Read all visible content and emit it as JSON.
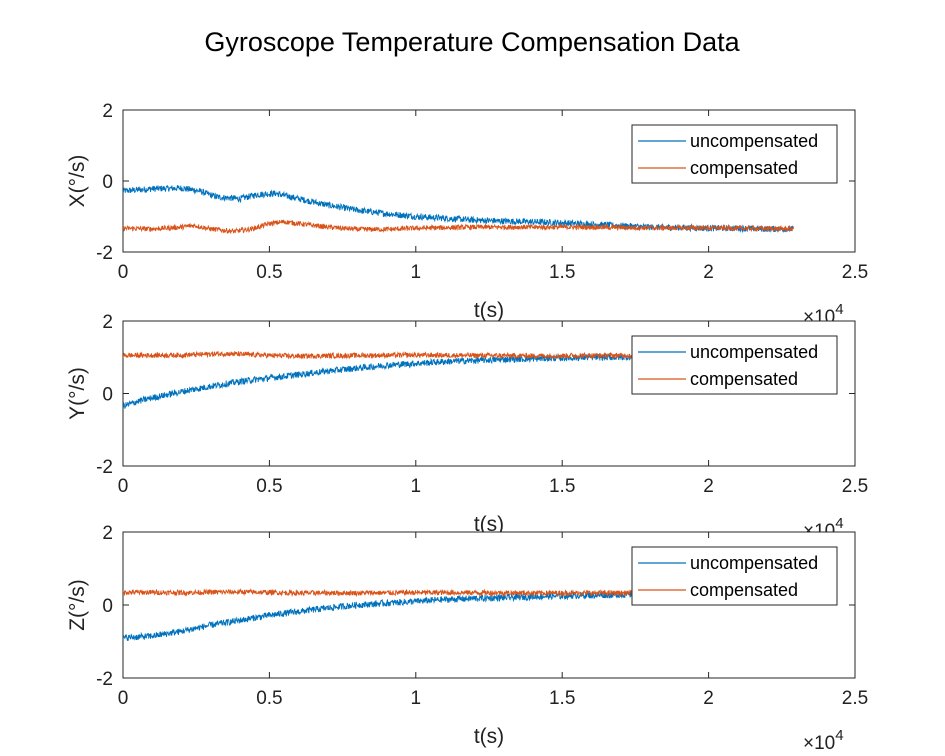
{
  "chart_data": {
    "title": "Gyroscope Temperature Compensation Data",
    "subplots": [
      {
        "type": "line",
        "ylabel": "X(°/s)",
        "xlabel": "t(s)",
        "xlim": [
          0,
          25000
        ],
        "ylim": [
          -2,
          2
        ],
        "x_ticks": [
          "0",
          "0.5",
          "1",
          "1.5",
          "2",
          "2.5"
        ],
        "y_ticks": [
          "-2",
          "0",
          "2"
        ],
        "x_exponent_base": "×10",
        "x_exponent_power": "4",
        "legend_position": "top-right",
        "series": [
          {
            "name": "uncompensated",
            "color": "#0072BD",
            "noise": 0.09,
            "points": [
              [
                0,
                -0.28
              ],
              [
                1000,
                -0.22
              ],
              [
                2000,
                -0.2
              ],
              [
                2600,
                -0.28
              ],
              [
                3200,
                -0.45
              ],
              [
                4000,
                -0.5
              ],
              [
                4600,
                -0.38
              ],
              [
                5200,
                -0.35
              ],
              [
                6000,
                -0.5
              ],
              [
                7000,
                -0.68
              ],
              [
                8000,
                -0.82
              ],
              [
                9000,
                -0.92
              ],
              [
                10000,
                -1.0
              ],
              [
                11000,
                -1.05
              ],
              [
                12000,
                -1.1
              ],
              [
                13000,
                -1.13
              ],
              [
                14000,
                -1.15
              ],
              [
                15000,
                -1.18
              ],
              [
                16000,
                -1.22
              ],
              [
                17000,
                -1.26
              ],
              [
                18000,
                -1.3
              ],
              [
                19000,
                -1.31
              ],
              [
                20000,
                -1.33
              ],
              [
                21000,
                -1.33
              ],
              [
                22000,
                -1.35
              ],
              [
                22900,
                -1.35
              ]
            ]
          },
          {
            "name": "compensated",
            "color": "#D95319",
            "noise": 0.07,
            "points": [
              [
                0,
                -1.33
              ],
              [
                1000,
                -1.35
              ],
              [
                2000,
                -1.3
              ],
              [
                2400,
                -1.25
              ],
              [
                3000,
                -1.35
              ],
              [
                3800,
                -1.42
              ],
              [
                4400,
                -1.35
              ],
              [
                5000,
                -1.2
              ],
              [
                5500,
                -1.15
              ],
              [
                6000,
                -1.2
              ],
              [
                7000,
                -1.3
              ],
              [
                8000,
                -1.36
              ],
              [
                9000,
                -1.36
              ],
              [
                10000,
                -1.33
              ],
              [
                12000,
                -1.3
              ],
              [
                14000,
                -1.3
              ],
              [
                16000,
                -1.3
              ],
              [
                18000,
                -1.32
              ],
              [
                20000,
                -1.32
              ],
              [
                22900,
                -1.35
              ]
            ]
          }
        ]
      },
      {
        "type": "line",
        "ylabel": "Y(°/s)",
        "xlabel": "t(s)",
        "xlim": [
          0,
          25000
        ],
        "ylim": [
          -2,
          2
        ],
        "x_ticks": [
          "0",
          "0.5",
          "1",
          "1.5",
          "2",
          "2.5"
        ],
        "y_ticks": [
          "-2",
          "0",
          "2"
        ],
        "x_exponent_base": "×10",
        "x_exponent_power": "4",
        "legend_position": "top-right",
        "series": [
          {
            "name": "uncompensated",
            "color": "#0072BD",
            "noise": 0.09,
            "points": [
              [
                0,
                -0.35
              ],
              [
                500,
                -0.22
              ],
              [
                1000,
                -0.12
              ],
              [
                2000,
                0.05
              ],
              [
                3000,
                0.2
              ],
              [
                4000,
                0.33
              ],
              [
                5000,
                0.43
              ],
              [
                6000,
                0.52
              ],
              [
                7000,
                0.62
              ],
              [
                8000,
                0.7
              ],
              [
                9000,
                0.78
              ],
              [
                10000,
                0.83
              ],
              [
                11000,
                0.88
              ],
              [
                12000,
                0.91
              ],
              [
                13000,
                0.94
              ],
              [
                14000,
                0.96
              ],
              [
                15000,
                0.98
              ],
              [
                16000,
                1.0
              ],
              [
                17000,
                1.0
              ],
              [
                18000,
                1.02
              ],
              [
                19000,
                1.03
              ],
              [
                20000,
                1.03
              ],
              [
                21000,
                1.04
              ],
              [
                22000,
                1.04
              ],
              [
                22900,
                1.05
              ]
            ]
          },
          {
            "name": "compensated",
            "color": "#D95319",
            "noise": 0.07,
            "points": [
              [
                0,
                1.05
              ],
              [
                2000,
                1.06
              ],
              [
                3500,
                1.1
              ],
              [
                5000,
                1.05
              ],
              [
                6000,
                1.03
              ],
              [
                8000,
                1.05
              ],
              [
                10000,
                1.06
              ],
              [
                12000,
                1.05
              ],
              [
                14000,
                1.04
              ],
              [
                16000,
                1.05
              ],
              [
                18000,
                1.05
              ],
              [
                20000,
                1.05
              ],
              [
                22900,
                1.05
              ]
            ]
          }
        ]
      },
      {
        "type": "line",
        "ylabel": "Z(°/s)",
        "xlabel": "t(s)",
        "xlim": [
          0,
          25000
        ],
        "ylim": [
          -2,
          2
        ],
        "x_ticks": [
          "0",
          "0.5",
          "1",
          "1.5",
          "2",
          "2.5"
        ],
        "y_ticks": [
          "-2",
          "0",
          "2"
        ],
        "x_exponent_base": "×10",
        "x_exponent_power": "4",
        "legend_position": "top-right",
        "series": [
          {
            "name": "uncompensated",
            "color": "#0072BD",
            "noise": 0.09,
            "points": [
              [
                0,
                -0.9
              ],
              [
                1000,
                -0.85
              ],
              [
                2000,
                -0.72
              ],
              [
                3000,
                -0.55
              ],
              [
                4000,
                -0.42
              ],
              [
                5000,
                -0.28
              ],
              [
                6000,
                -0.18
              ],
              [
                7000,
                -0.08
              ],
              [
                8000,
                0.0
              ],
              [
                9000,
                0.05
              ],
              [
                10000,
                0.1
              ],
              [
                11000,
                0.15
              ],
              [
                12000,
                0.18
              ],
              [
                13000,
                0.2
              ],
              [
                14000,
                0.23
              ],
              [
                15000,
                0.25
              ],
              [
                16000,
                0.27
              ],
              [
                17000,
                0.28
              ],
              [
                18000,
                0.3
              ],
              [
                19000,
                0.3
              ],
              [
                20000,
                0.31
              ],
              [
                21000,
                0.32
              ],
              [
                22000,
                0.32
              ],
              [
                22900,
                0.33
              ]
            ]
          },
          {
            "name": "compensated",
            "color": "#D95319",
            "noise": 0.07,
            "points": [
              [
                0,
                0.35
              ],
              [
                2000,
                0.34
              ],
              [
                4000,
                0.36
              ],
              [
                6000,
                0.33
              ],
              [
                8000,
                0.33
              ],
              [
                10000,
                0.34
              ],
              [
                12000,
                0.34
              ],
              [
                14000,
                0.33
              ],
              [
                16000,
                0.33
              ],
              [
                18000,
                0.33
              ],
              [
                20000,
                0.33
              ],
              [
                22900,
                0.33
              ]
            ]
          }
        ]
      }
    ]
  }
}
